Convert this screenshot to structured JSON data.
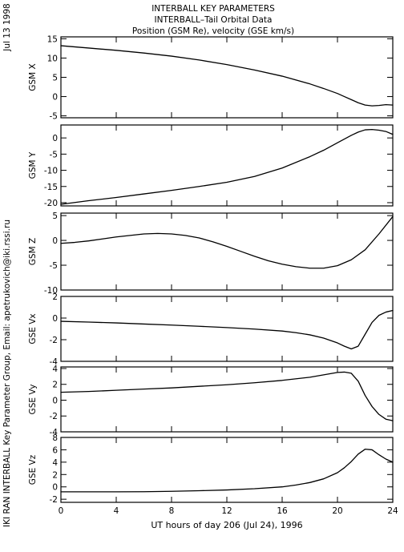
{
  "header": {
    "title": "INTERBALL KEY PARAMETERS",
    "subtitle": "INTERBALL–Tail Orbital Data",
    "units_line": "Position (GSM Re), velocity (GSE km/s)"
  },
  "side": {
    "date": "Jul 13 1998",
    "credit": "IKI RAN INTERBALL Key Parameter Group, Email: apetrukovich@iki.rssi.ru"
  },
  "chart_data": {
    "type": "line",
    "xlabel": "UT hours of day 206 (Jul 24), 1996",
    "xlim": [
      0,
      24
    ],
    "xticks": [
      0,
      4,
      8,
      12,
      16,
      20,
      24
    ],
    "xtick_labels": [
      "0",
      "4",
      "8",
      "12",
      "16",
      "20",
      "24"
    ],
    "panels": [
      {
        "ylabel": "GSM X",
        "ylim": [
          -5.5,
          15.5
        ],
        "yticks": [
          -5,
          0,
          5,
          10,
          15
        ],
        "ytick_labels": [
          "-5",
          "0",
          "5",
          "10",
          "15"
        ],
        "series": [
          {
            "x": [
              0,
              2,
              4,
              6,
              8,
              10,
              12,
              14,
              16,
              18,
              19,
              20,
              20.5,
              21,
              21.5,
              22,
              22.5,
              23,
              23.5,
              24
            ],
            "y": [
              13.2,
              12.6,
              12.0,
              11.3,
              10.5,
              9.5,
              8.3,
              6.9,
              5.3,
              3.3,
              2.1,
              0.8,
              0.0,
              -0.8,
              -1.6,
              -2.2,
              -2.4,
              -2.3,
              -2.1,
              -2.2
            ]
          }
        ]
      },
      {
        "ylabel": "GSM Y",
        "ylim": [
          -21,
          4
        ],
        "yticks": [
          -20,
          -15,
          -10,
          -5,
          0
        ],
        "ytick_labels": [
          "-20",
          "-15",
          "-10",
          "-5",
          "0"
        ],
        "series": [
          {
            "x": [
              0,
              2,
              4,
              6,
              8,
              10,
              12,
              14,
              16,
              18,
              19,
              20,
              21,
              21.5,
              22,
              22.5,
              23,
              23.5,
              24
            ],
            "y": [
              -20.5,
              -19.4,
              -18.4,
              -17.3,
              -16.2,
              -15.0,
              -13.7,
              -11.9,
              -9.3,
              -5.8,
              -3.8,
              -1.5,
              0.8,
              1.8,
              2.5,
              2.6,
              2.4,
              2.0,
              1.1
            ]
          }
        ]
      },
      {
        "ylabel": "GSM Z",
        "ylim": [
          -10,
          5.5
        ],
        "yticks": [
          -10,
          -5,
          0,
          5
        ],
        "ytick_labels": [
          "-10",
          "-5",
          "0",
          "5"
        ],
        "series": [
          {
            "x": [
              0,
              1,
              2,
              3,
              4,
              5,
              6,
              7,
              8,
              9,
              10,
              11,
              12,
              13,
              14,
              15,
              16,
              17,
              18,
              19,
              20,
              21,
              22,
              23,
              24
            ],
            "y": [
              -0.6,
              -0.4,
              -0.1,
              0.3,
              0.7,
              1.0,
              1.3,
              1.4,
              1.3,
              1.0,
              0.5,
              -0.3,
              -1.2,
              -2.2,
              -3.2,
              -4.1,
              -4.8,
              -5.3,
              -5.6,
              -5.6,
              -5.1,
              -3.9,
              -1.9,
              1.3,
              4.8
            ]
          }
        ]
      },
      {
        "ylabel": "GSE Vx",
        "ylim": [
          -4,
          2
        ],
        "yticks": [
          -4,
          -2,
          0,
          2
        ],
        "ytick_labels": [
          "-4",
          "-2",
          "0",
          "2"
        ],
        "series": [
          {
            "x": [
              0,
              2,
              4,
              6,
              8,
              10,
              12,
              14,
              16,
              17,
              18,
              19,
              20,
              20.5,
              21,
              21.5,
              22,
              22.5,
              23,
              23.5,
              24
            ],
            "y": [
              -0.3,
              -0.37,
              -0.45,
              -0.55,
              -0.65,
              -0.76,
              -0.88,
              -1.02,
              -1.2,
              -1.35,
              -1.55,
              -1.85,
              -2.3,
              -2.6,
              -2.85,
              -2.6,
              -1.5,
              -0.4,
              0.25,
              0.55,
              0.7
            ]
          }
        ]
      },
      {
        "ylabel": "GSE Vy",
        "ylim": [
          -4,
          4.2
        ],
        "yticks": [
          -4,
          -2,
          0,
          2,
          4
        ],
        "ytick_labels": [
          "-4",
          "-2",
          "0",
          "2",
          "4"
        ],
        "series": [
          {
            "x": [
              0,
              2,
              4,
              6,
              8,
              10,
              12,
              14,
              16,
              18,
              19,
              20,
              20.5,
              21,
              21.5,
              22,
              22.5,
              23,
              23.5,
              24
            ],
            "y": [
              1.0,
              1.1,
              1.25,
              1.4,
              1.55,
              1.75,
              1.95,
              2.2,
              2.5,
              2.9,
              3.2,
              3.5,
              3.55,
              3.4,
              2.4,
              0.6,
              -0.8,
              -1.8,
              -2.4,
              -2.6
            ]
          }
        ]
      },
      {
        "ylabel": "GSE Vz",
        "ylim": [
          -2.5,
          8
        ],
        "yticks": [
          -2,
          0,
          2,
          4,
          6,
          8
        ],
        "ytick_labels": [
          "-2",
          "0",
          "2",
          "4",
          "6",
          "8"
        ],
        "series": [
          {
            "x": [
              0,
              2,
              4,
              6,
              8,
              10,
              12,
              14,
              16,
              17,
              18,
              19,
              20,
              20.5,
              21,
              21.5,
              22,
              22.5,
              23,
              23.5,
              24
            ],
            "y": [
              -0.8,
              -0.8,
              -0.8,
              -0.78,
              -0.72,
              -0.62,
              -0.5,
              -0.3,
              0.0,
              0.3,
              0.7,
              1.3,
              2.3,
              3.1,
              4.1,
              5.3,
              6.1,
              6.0,
              5.2,
              4.5,
              4.0
            ]
          }
        ]
      }
    ]
  }
}
